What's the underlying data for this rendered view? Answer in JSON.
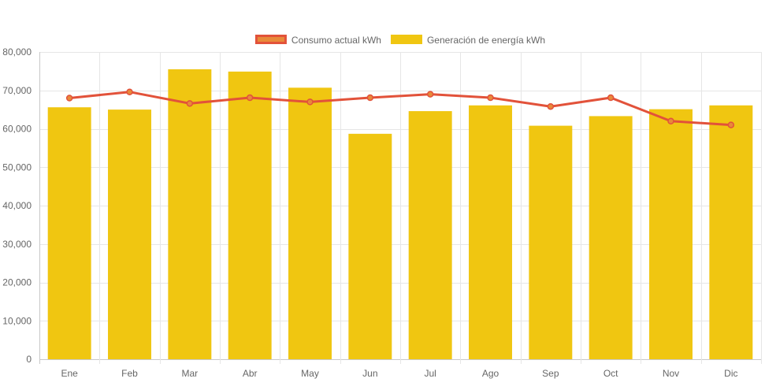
{
  "chart_data": {
    "type": "bar",
    "categories": [
      "Ene",
      "Feb",
      "Mar",
      "Abr",
      "May",
      "Jun",
      "Jul",
      "Ago",
      "Sep",
      "Oct",
      "Nov",
      "Dic"
    ],
    "series": [
      {
        "name": "Consumo actual kWh",
        "type": "line",
        "values": [
          68000,
          69600,
          66600,
          68100,
          67000,
          68100,
          69000,
          68100,
          65800,
          68100,
          62000,
          61000
        ],
        "color": "#e2523a",
        "point_fill": "#e88a3a"
      },
      {
        "name": "Generación de energía kWh",
        "type": "bar",
        "values": [
          65600,
          65000,
          75500,
          74900,
          70700,
          58700,
          64600,
          66100,
          60800,
          63300,
          65100,
          66100
        ],
        "color": "#f0c611"
      }
    ],
    "ylim": [
      0,
      80000
    ],
    "y_ticks": [
      "0",
      "10,000",
      "20,000",
      "30,000",
      "40,000",
      "50,000",
      "60,000",
      "70,000",
      "80,000"
    ],
    "grid": true,
    "legend_position": "top-center",
    "title": "",
    "xlabel": "",
    "ylabel": ""
  }
}
